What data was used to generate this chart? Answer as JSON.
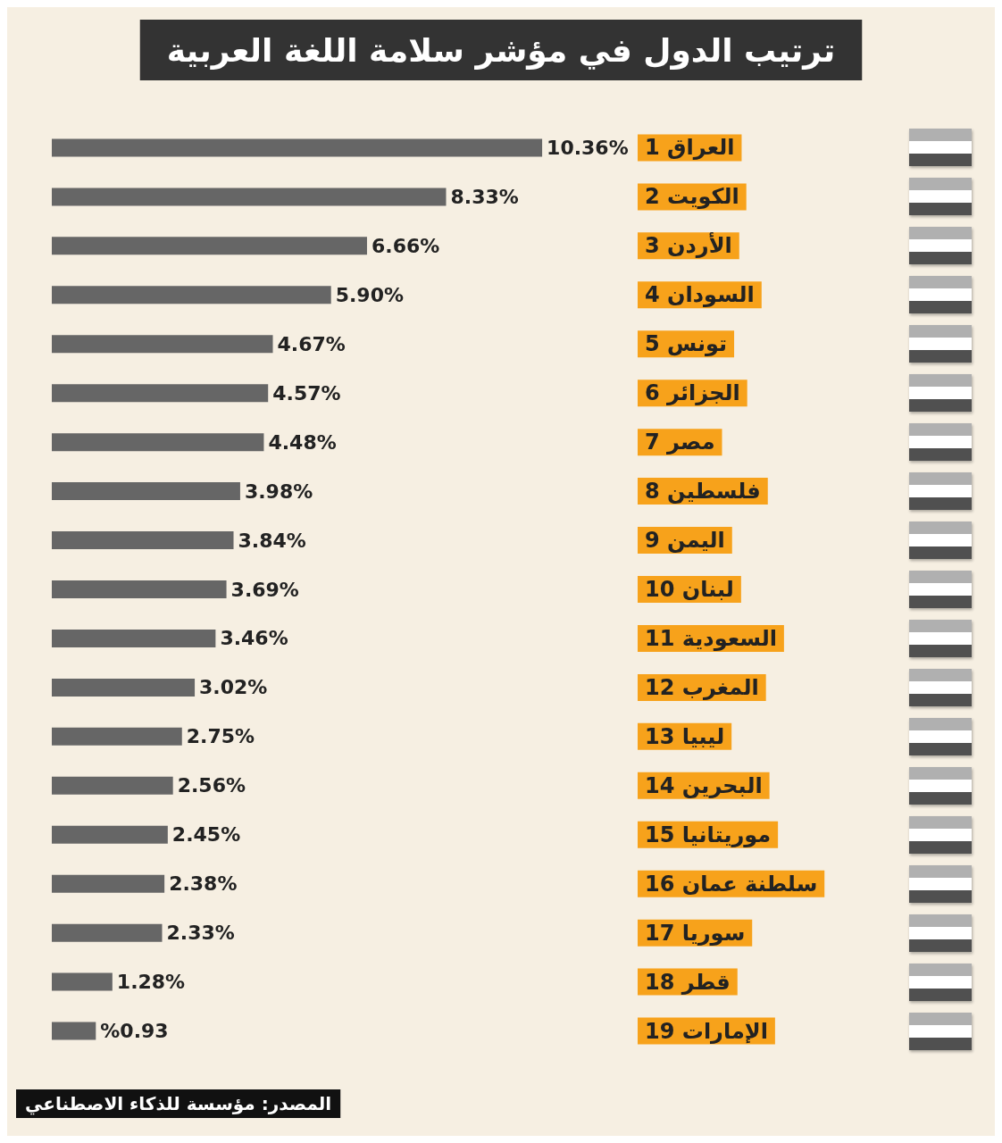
{
  "chart_data": {
    "type": "bar",
    "orientation": "horizontal",
    "title": "ترتيب الدول في مؤشر سلامة اللغة العربية",
    "categories": [
      "1 العراق",
      "2 الكويت",
      "3 الأردن",
      "4 السودان",
      "5 تونس",
      "6 الجزائر",
      "7 مصر",
      "8 فلسطين",
      "9 اليمن",
      "10 لبنان",
      "11 السعودية",
      "12 المغرب",
      "13 ليبيا",
      "14 البحرين",
      "15 موريتانيا",
      "16 سلطنة عمان",
      "17 سوريا",
      "18 قطر",
      "19 الإمارات"
    ],
    "values": [
      10.36,
      8.33,
      6.66,
      5.9,
      4.67,
      4.57,
      4.48,
      3.98,
      3.84,
      3.69,
      3.46,
      3.02,
      2.75,
      2.56,
      2.45,
      2.38,
      2.33,
      1.28,
      0.93
    ],
    "value_labels": [
      "10.36%",
      "8.33%",
      "6.66%",
      "5.90%",
      "4.67%",
      "4.57%",
      "4.48%",
      "3.98%",
      "3.84%",
      "3.69%",
      "3.46%",
      "3.02%",
      "2.75%",
      "2.56%",
      "2.45%",
      "2.38%",
      "2.33%",
      "1.28%",
      "%0.93"
    ],
    "color": "#666666",
    "tick_labels": "y",
    "annotations": [
      "المصدر: مؤسسة للذكاء الاصطناعي"
    ]
  }
}
